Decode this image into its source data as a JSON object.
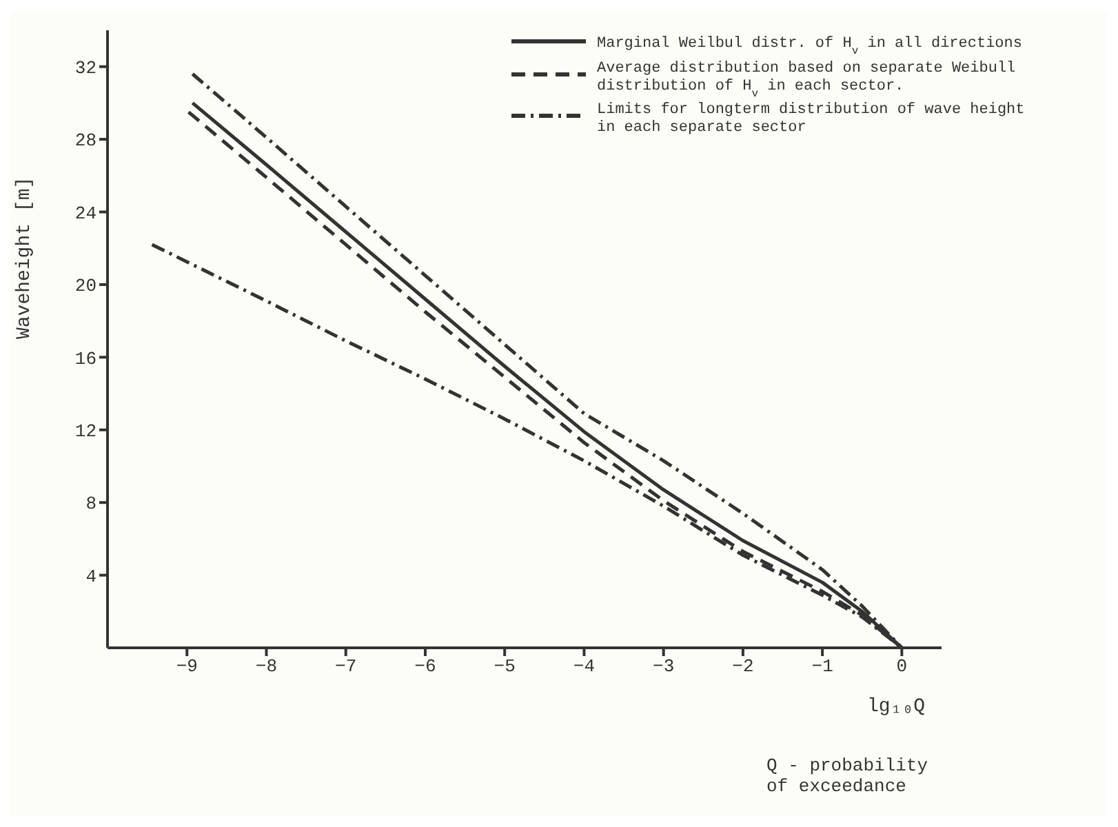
{
  "chart_data": {
    "type": "line",
    "xlabel": "lg₁₀Q",
    "ylabel": "Waveheight [m]",
    "annotations": [
      "Q - probability of exceedance"
    ],
    "xlim": [
      -10,
      0.5
    ],
    "xticks": [
      -9,
      -8,
      -7,
      -6,
      -5,
      -4,
      -3,
      -2,
      -1,
      0
    ],
    "ylim": [
      0,
      34
    ],
    "yticks": [
      4,
      8,
      12,
      16,
      20,
      24,
      28,
      32
    ],
    "grid": false,
    "legend": "top right",
    "marker": "none",
    "series": [
      {
        "name": "Marginal Weilbul distr. of H$_{v}$ in all directions",
        "color": "#333333",
        "line_style": "solid",
        "x": [
          -8.93,
          -8,
          -7,
          -6,
          -5,
          -4,
          -3,
          -2,
          -1,
          -0.5,
          0
        ],
        "values": [
          30.0,
          26.6,
          22.9,
          19.2,
          15.5,
          11.9,
          8.7,
          5.9,
          3.6,
          2.0,
          0
        ]
      },
      {
        "name": "Average distribution based on separate Weibull distribution of H$_{v}$ in each sector.",
        "color": "#333333",
        "line_style": "dashed",
        "x": [
          -8.98,
          -8,
          -7,
          -6,
          -5,
          -4,
          -3,
          -2,
          -1,
          -0.5,
          0
        ],
        "values": [
          29.5,
          25.9,
          22.2,
          18.5,
          14.9,
          11.3,
          8.1,
          5.3,
          3.1,
          1.8,
          0
        ]
      },
      {
        "name": "Limits for longterm distribution of wave height in each separate sector",
        "color": "#333333",
        "line_style": "dashdot",
        "x": [
          -8.93,
          -8,
          -7,
          -6,
          -5,
          -4,
          -3,
          -2,
          -1,
          -0.5,
          0
        ],
        "values": [
          31.6,
          28.1,
          24.3,
          20.5,
          16.7,
          12.9,
          10.3,
          7.4,
          4.3,
          2.3,
          0
        ]
      },
      {
        "color": "#333333",
        "line_style": "dashdot",
        "x": [
          -9.44,
          -8,
          -7,
          -6,
          -5,
          -4,
          -3,
          -2,
          -1,
          -0.5,
          0
        ],
        "values": [
          22.2,
          19.1,
          16.9,
          14.8,
          12.6,
          10.3,
          7.8,
          5.1,
          2.9,
          1.7,
          0
        ]
      }
    ]
  }
}
